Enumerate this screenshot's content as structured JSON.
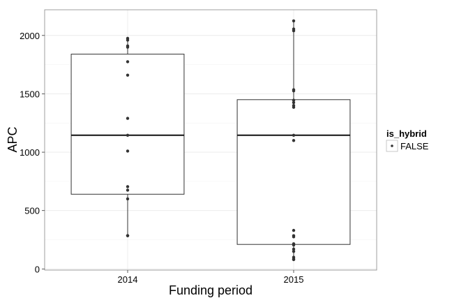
{
  "chart_data": {
    "type": "boxplot",
    "xlabel": "Funding period",
    "ylabel": "APC",
    "ylim": [
      -10,
      2220
    ],
    "yticks": [
      0,
      500,
      1000,
      1500,
      2000
    ],
    "categories": [
      "2014",
      "2015"
    ],
    "grid": true,
    "legend": {
      "title": "is_hybrid",
      "entries": [
        "FALSE"
      ],
      "placement": "right"
    },
    "boxes": [
      {
        "category": "2014",
        "whisker_low": 285,
        "q1": 640,
        "median": 1145,
        "q3": 1840,
        "whisker_high": 1975
      },
      {
        "category": "2015",
        "whisker_low": 80,
        "q1": 210,
        "median": 1145,
        "q3": 1450,
        "whisker_high": 2125
      }
    ],
    "points": {
      "2014": [
        1975,
        1960,
        1910,
        1900,
        1775,
        1660,
        1290,
        1145,
        1010,
        705,
        675,
        600,
        285,
        285
      ],
      "2015": [
        2125,
        2055,
        2040,
        1535,
        1525,
        1445,
        1425,
        1400,
        1385,
        1145,
        1100,
        330,
        285,
        275,
        215,
        205,
        170,
        150,
        100,
        85,
        80
      ]
    }
  }
}
